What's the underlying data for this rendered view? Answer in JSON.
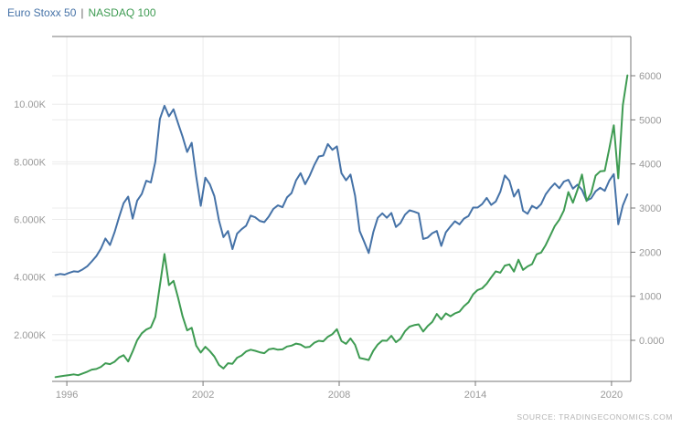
{
  "legend": {
    "series1": "Euro Stoxx 50",
    "separator": "|",
    "series2": "NASDAQ 100"
  },
  "source": {
    "text": "SOURCE: TRADINGECONOMICS.COM"
  },
  "colors": {
    "series_blue": "#4572a7",
    "series_green": "#3e9b52",
    "grid": "#ececec",
    "axis_line": "#777777",
    "tick_label": "#999999",
    "separator_text": "#666666",
    "source_text": "#b3b3b3"
  },
  "chart_data": {
    "type": "line",
    "title": "Euro Stoxx 50 | NASDAQ 100",
    "x_start": 1995.5,
    "x_step": 0.2,
    "x_axis": {
      "range": [
        1995.35,
        2020.85
      ],
      "ticks": [
        1996,
        2002,
        2008,
        2014,
        2020
      ],
      "labels": [
        "1996",
        "2002",
        "2008",
        "2014",
        "2020"
      ]
    },
    "left_axis": {
      "series": "NASDAQ 100",
      "range": [
        380,
        12350
      ],
      "ticks": [
        2000,
        4000,
        6000,
        8000,
        10000
      ],
      "labels": [
        "2.000K",
        "4.000K",
        "6.000K",
        "8.000K",
        "10.00K"
      ]
    },
    "right_axis": {
      "series": "Euro Stoxx 50",
      "range": [
        -930,
        6890
      ],
      "ticks": [
        0,
        1000,
        2000,
        3000,
        4000,
        5000,
        6000
      ],
      "labels": [
        "0.000",
        "1000",
        "2000",
        "3000",
        "4000",
        "5000",
        "6000"
      ]
    },
    "series": [
      {
        "name": "Euro Stoxx 50",
        "axis": "right",
        "color": "#4572a7",
        "values": [
          1480,
          1505,
          1490,
          1530,
          1565,
          1555,
          1610,
          1680,
          1790,
          1910,
          2080,
          2310,
          2160,
          2450,
          2790,
          3110,
          3260,
          2760,
          3170,
          3320,
          3620,
          3580,
          4050,
          5020,
          5320,
          5080,
          5240,
          4920,
          4620,
          4270,
          4480,
          3720,
          3050,
          3690,
          3540,
          3270,
          2720,
          2340,
          2480,
          2070,
          2420,
          2520,
          2600,
          2830,
          2790,
          2710,
          2680,
          2810,
          2980,
          3060,
          3020,
          3240,
          3340,
          3630,
          3790,
          3540,
          3730,
          3970,
          4170,
          4190,
          4450,
          4320,
          4400,
          3790,
          3630,
          3760,
          3280,
          2480,
          2240,
          1980,
          2450,
          2780,
          2880,
          2780,
          2890,
          2570,
          2660,
          2850,
          2950,
          2920,
          2880,
          2300,
          2330,
          2430,
          2480,
          2140,
          2450,
          2580,
          2700,
          2630,
          2760,
          2820,
          3010,
          3010,
          3090,
          3230,
          3070,
          3150,
          3370,
          3740,
          3620,
          3260,
          3420,
          2940,
          2870,
          3050,
          2990,
          3090,
          3310,
          3450,
          3560,
          3450,
          3600,
          3640,
          3440,
          3530,
          3410,
          3170,
          3220,
          3380,
          3460,
          3390,
          3620,
          3770,
          2630,
          3060,
          3310
        ]
      },
      {
        "name": "NASDAQ 100",
        "axis": "left",
        "color": "#3e9b52",
        "values": [
          530,
          555,
          575,
          600,
          625,
          595,
          655,
          715,
          790,
          810,
          885,
          1010,
          980,
          1060,
          1210,
          1290,
          1070,
          1420,
          1810,
          2050,
          2180,
          2250,
          2620,
          3710,
          4800,
          3720,
          3870,
          3280,
          2640,
          2150,
          2240,
          1620,
          1380,
          1580,
          1430,
          1240,
          950,
          830,
          1010,
          990,
          1200,
          1280,
          1420,
          1480,
          1440,
          1390,
          1360,
          1490,
          1520,
          1480,
          1490,
          1590,
          1620,
          1690,
          1660,
          1560,
          1580,
          1720,
          1790,
          1770,
          1930,
          2020,
          2190,
          1780,
          1680,
          1870,
          1650,
          1190,
          1160,
          1120,
          1440,
          1660,
          1800,
          1790,
          1960,
          1740,
          1860,
          2120,
          2280,
          2330,
          2360,
          2110,
          2300,
          2440,
          2720,
          2530,
          2740,
          2640,
          2740,
          2800,
          2990,
          3130,
          3400,
          3550,
          3610,
          3770,
          3990,
          4200,
          4150,
          4400,
          4440,
          4190,
          4600,
          4250,
          4370,
          4450,
          4790,
          4850,
          5110,
          5440,
          5770,
          5990,
          6310,
          6950,
          6580,
          7030,
          7560,
          6640,
          6910,
          7520,
          7670,
          7690,
          8450,
          9270,
          7430,
          9970,
          11000
        ]
      }
    ]
  }
}
